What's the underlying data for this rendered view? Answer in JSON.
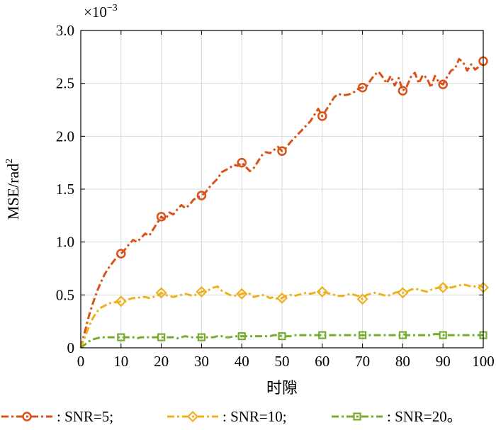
{
  "chart_data": {
    "type": "line",
    "title": "",
    "xlabel": "时隙",
    "ylabel": "MSE/rad",
    "ylabel_superscript": "2",
    "scale_label": "×10",
    "scale_exponent": "−3",
    "xlim": [
      0,
      100
    ],
    "ylim": [
      0,
      3.0
    ],
    "grid": true,
    "legend_position": "bottom",
    "x_ticks": [
      "0",
      "10",
      "20",
      "30",
      "40",
      "50",
      "60",
      "70",
      "80",
      "90",
      "100"
    ],
    "y_ticks": [
      "0",
      "0.5",
      "1.0",
      "1.5",
      "2.0",
      "2.5",
      "3.0"
    ],
    "series": [
      {
        "name": ": SNR=5;",
        "color": "#d95319",
        "marker": "circle",
        "x": [
          0,
          1,
          2,
          3,
          4,
          5,
          6,
          7,
          8,
          9,
          10,
          11,
          12,
          13,
          14,
          15,
          16,
          17,
          18,
          19,
          20,
          21,
          22,
          23,
          24,
          25,
          26,
          27,
          28,
          29,
          30,
          31,
          32,
          33,
          34,
          35,
          36,
          37,
          38,
          39,
          40,
          41,
          42,
          43,
          44,
          45,
          46,
          47,
          48,
          49,
          50,
          51,
          52,
          53,
          54,
          55,
          56,
          57,
          58,
          59,
          60,
          61,
          62,
          63,
          64,
          65,
          66,
          67,
          68,
          69,
          70,
          71,
          72,
          73,
          74,
          75,
          76,
          77,
          78,
          79,
          80,
          81,
          82,
          83,
          84,
          85,
          86,
          87,
          88,
          89,
          90,
          91,
          92,
          93,
          94,
          95,
          96,
          97,
          98,
          99,
          100
        ],
        "y": [
          0,
          0.15,
          0.3,
          0.42,
          0.53,
          0.62,
          0.7,
          0.76,
          0.81,
          0.86,
          0.89,
          0.93,
          0.98,
          1.02,
          1.0,
          1.04,
          1.08,
          1.06,
          1.12,
          1.18,
          1.24,
          1.21,
          1.28,
          1.26,
          1.31,
          1.35,
          1.32,
          1.35,
          1.4,
          1.42,
          1.44,
          1.47,
          1.52,
          1.56,
          1.6,
          1.66,
          1.68,
          1.7,
          1.73,
          1.72,
          1.75,
          1.71,
          1.67,
          1.7,
          1.76,
          1.82,
          1.85,
          1.84,
          1.87,
          1.9,
          1.86,
          1.89,
          1.94,
          1.98,
          2.02,
          2.06,
          2.1,
          2.14,
          2.2,
          2.26,
          2.19,
          2.25,
          2.31,
          2.37,
          2.4,
          2.39,
          2.39,
          2.4,
          2.42,
          2.45,
          2.46,
          2.47,
          2.53,
          2.58,
          2.61,
          2.56,
          2.5,
          2.57,
          2.48,
          2.55,
          2.43,
          2.47,
          2.56,
          2.6,
          2.5,
          2.58,
          2.55,
          2.46,
          2.57,
          2.51,
          2.49,
          2.56,
          2.62,
          2.64,
          2.73,
          2.7,
          2.62,
          2.68,
          2.63,
          2.66,
          2.71
        ],
        "marker_x": [
          10,
          20,
          30,
          40,
          50,
          60,
          70,
          80,
          90,
          100
        ],
        "marker_y": [
          0.89,
          1.24,
          1.44,
          1.75,
          1.86,
          2.19,
          2.46,
          2.43,
          2.49,
          2.71
        ]
      },
      {
        "name": ": SNR=10;",
        "color": "#edb120",
        "marker": "diamond",
        "x": [
          0,
          1,
          2,
          3,
          4,
          5,
          6,
          7,
          8,
          9,
          10,
          11,
          12,
          13,
          14,
          15,
          16,
          17,
          18,
          19,
          20,
          21,
          22,
          23,
          24,
          25,
          26,
          27,
          28,
          29,
          30,
          31,
          32,
          33,
          34,
          35,
          36,
          37,
          38,
          39,
          40,
          41,
          42,
          43,
          44,
          45,
          46,
          47,
          48,
          49,
          50,
          51,
          52,
          53,
          54,
          55,
          56,
          57,
          58,
          59,
          60,
          61,
          62,
          63,
          64,
          65,
          66,
          67,
          68,
          69,
          70,
          71,
          72,
          73,
          74,
          75,
          76,
          77,
          78,
          79,
          80,
          81,
          82,
          83,
          84,
          85,
          86,
          87,
          88,
          89,
          90,
          91,
          92,
          93,
          94,
          95,
          96,
          97,
          98,
          99,
          100
        ],
        "y": [
          0,
          0.1,
          0.2,
          0.28,
          0.34,
          0.38,
          0.4,
          0.42,
          0.43,
          0.43,
          0.44,
          0.45,
          0.46,
          0.47,
          0.47,
          0.48,
          0.48,
          0.47,
          0.48,
          0.49,
          0.52,
          0.5,
          0.49,
          0.48,
          0.49,
          0.5,
          0.51,
          0.5,
          0.49,
          0.51,
          0.53,
          0.54,
          0.55,
          0.57,
          0.58,
          0.54,
          0.52,
          0.5,
          0.49,
          0.5,
          0.51,
          0.52,
          0.51,
          0.48,
          0.49,
          0.5,
          0.49,
          0.47,
          0.48,
          0.46,
          0.47,
          0.49,
          0.5,
          0.49,
          0.5,
          0.51,
          0.52,
          0.51,
          0.52,
          0.53,
          0.53,
          0.52,
          0.51,
          0.5,
          0.49,
          0.49,
          0.5,
          0.51,
          0.5,
          0.49,
          0.46,
          0.5,
          0.51,
          0.52,
          0.51,
          0.5,
          0.49,
          0.5,
          0.52,
          0.53,
          0.52,
          0.53,
          0.55,
          0.56,
          0.55,
          0.54,
          0.53,
          0.55,
          0.56,
          0.57,
          0.57,
          0.58,
          0.57,
          0.58,
          0.59,
          0.6,
          0.59,
          0.58,
          0.58,
          0.59,
          0.57
        ],
        "marker_x": [
          10,
          20,
          30,
          40,
          50,
          60,
          70,
          80,
          90,
          100
        ],
        "marker_y": [
          0.44,
          0.52,
          0.53,
          0.51,
          0.47,
          0.53,
          0.46,
          0.52,
          0.57,
          0.57
        ]
      },
      {
        "name": ": SNR=20。",
        "color": "#77ac30",
        "marker": "square",
        "x": [
          0,
          1,
          2,
          3,
          4,
          5,
          6,
          7,
          8,
          9,
          10,
          11,
          12,
          13,
          14,
          15,
          16,
          17,
          18,
          19,
          20,
          21,
          22,
          23,
          24,
          25,
          26,
          27,
          28,
          29,
          30,
          31,
          32,
          33,
          34,
          35,
          36,
          37,
          38,
          39,
          40,
          41,
          42,
          43,
          44,
          45,
          46,
          47,
          48,
          49,
          50,
          51,
          52,
          53,
          54,
          55,
          56,
          57,
          58,
          59,
          60,
          61,
          62,
          63,
          64,
          65,
          66,
          67,
          68,
          69,
          70,
          71,
          72,
          73,
          74,
          75,
          76,
          77,
          78,
          79,
          80,
          81,
          82,
          83,
          84,
          85,
          86,
          87,
          88,
          89,
          90,
          91,
          92,
          93,
          94,
          95,
          96,
          97,
          98,
          99,
          100
        ],
        "y": [
          0,
          0.03,
          0.06,
          0.08,
          0.09,
          0.1,
          0.1,
          0.1,
          0.1,
          0.1,
          0.1,
          0.1,
          0.1,
          0.1,
          0.09,
          0.1,
          0.1,
          0.1,
          0.1,
          0.1,
          0.1,
          0.1,
          0.1,
          0.1,
          0.09,
          0.1,
          0.11,
          0.1,
          0.1,
          0.1,
          0.1,
          0.1,
          0.1,
          0.1,
          0.11,
          0.11,
          0.1,
          0.1,
          0.11,
          0.11,
          0.11,
          0.11,
          0.11,
          0.11,
          0.11,
          0.11,
          0.11,
          0.11,
          0.12,
          0.12,
          0.11,
          0.11,
          0.11,
          0.12,
          0.12,
          0.12,
          0.12,
          0.12,
          0.12,
          0.12,
          0.12,
          0.12,
          0.12,
          0.12,
          0.12,
          0.12,
          0.12,
          0.12,
          0.12,
          0.12,
          0.12,
          0.12,
          0.12,
          0.12,
          0.12,
          0.12,
          0.12,
          0.12,
          0.12,
          0.12,
          0.13,
          0.12,
          0.12,
          0.12,
          0.12,
          0.12,
          0.12,
          0.12,
          0.13,
          0.13,
          0.12,
          0.12,
          0.12,
          0.12,
          0.12,
          0.12,
          0.12,
          0.12,
          0.12,
          0.12,
          0.12
        ],
        "marker_x": [
          10,
          20,
          30,
          40,
          50,
          60,
          70,
          80,
          90,
          100
        ],
        "marker_y": [
          0.1,
          0.1,
          0.1,
          0.11,
          0.11,
          0.12,
          0.12,
          0.12,
          0.12,
          0.12
        ]
      }
    ]
  }
}
